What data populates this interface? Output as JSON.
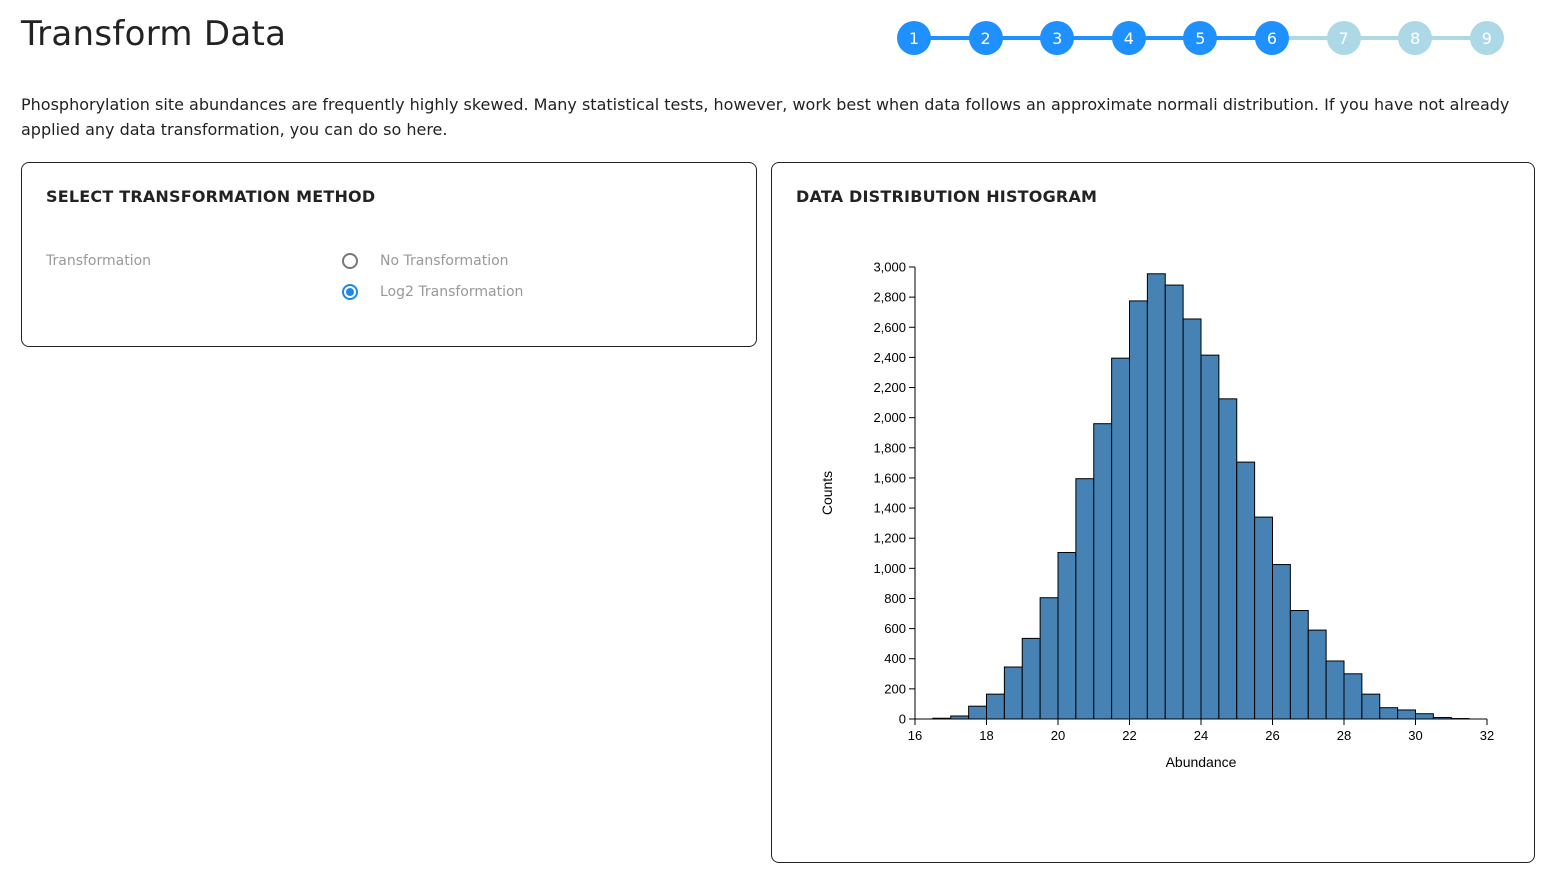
{
  "page": {
    "title": "Transform Data",
    "intro": "Phosphorylation site abundances are frequently highly skewed. Many statistical tests, however, work best when data follows an approximate normali distribution. If you have not already applied any data transformation, you can do so here."
  },
  "stepper": {
    "steps": [
      "1",
      "2",
      "3",
      "4",
      "5",
      "6",
      "7",
      "8",
      "9"
    ],
    "current": 6,
    "active_color": "#1e90ff",
    "inactive_color": "#add8e6"
  },
  "transform_card": {
    "title": "SELECT TRANSFORMATION METHOD",
    "field_label": "Transformation",
    "options": [
      {
        "label": "No Transformation",
        "checked": false
      },
      {
        "label": "Log2 Transformation",
        "checked": true
      }
    ]
  },
  "histogram_card": {
    "title": "DATA DISTRIBUTION HISTOGRAM"
  },
  "chart_data": {
    "type": "bar",
    "xlabel": "Abundance",
    "ylabel": "Counts",
    "xlim": [
      16,
      32
    ],
    "ylim": [
      0,
      3000
    ],
    "x_ticks": [
      16,
      18,
      20,
      22,
      24,
      26,
      28,
      30,
      32
    ],
    "y_ticks": [
      0,
      200,
      400,
      600,
      800,
      1000,
      1200,
      1400,
      1600,
      1800,
      2000,
      2200,
      2400,
      2600,
      2800,
      3000
    ],
    "bin_width": 0.5,
    "bins": [
      {
        "x0": 16.0,
        "count": 0
      },
      {
        "x0": 16.5,
        "count": 5
      },
      {
        "x0": 17.0,
        "count": 20
      },
      {
        "x0": 17.5,
        "count": 85
      },
      {
        "x0": 18.0,
        "count": 165
      },
      {
        "x0": 18.5,
        "count": 345
      },
      {
        "x0": 19.0,
        "count": 535
      },
      {
        "x0": 19.5,
        "count": 805
      },
      {
        "x0": 20.0,
        "count": 1105
      },
      {
        "x0": 20.5,
        "count": 1595
      },
      {
        "x0": 21.0,
        "count": 1960
      },
      {
        "x0": 21.5,
        "count": 2395
      },
      {
        "x0": 22.0,
        "count": 2775
      },
      {
        "x0": 22.5,
        "count": 2955
      },
      {
        "x0": 23.0,
        "count": 2880
      },
      {
        "x0": 23.5,
        "count": 2655
      },
      {
        "x0": 24.0,
        "count": 2415
      },
      {
        "x0": 24.5,
        "count": 2125
      },
      {
        "x0": 25.0,
        "count": 1705
      },
      {
        "x0": 25.5,
        "count": 1340
      },
      {
        "x0": 26.0,
        "count": 1025
      },
      {
        "x0": 26.5,
        "count": 720
      },
      {
        "x0": 27.0,
        "count": 590
      },
      {
        "x0": 27.5,
        "count": 385
      },
      {
        "x0": 28.0,
        "count": 300
      },
      {
        "x0": 28.5,
        "count": 165
      },
      {
        "x0": 29.0,
        "count": 75
      },
      {
        "x0": 29.5,
        "count": 60
      },
      {
        "x0": 30.0,
        "count": 35
      },
      {
        "x0": 30.5,
        "count": 10
      },
      {
        "x0": 31.0,
        "count": 3
      },
      {
        "x0": 31.5,
        "count": 0
      }
    ],
    "bar_color": "#4682b4",
    "grid": false
  }
}
